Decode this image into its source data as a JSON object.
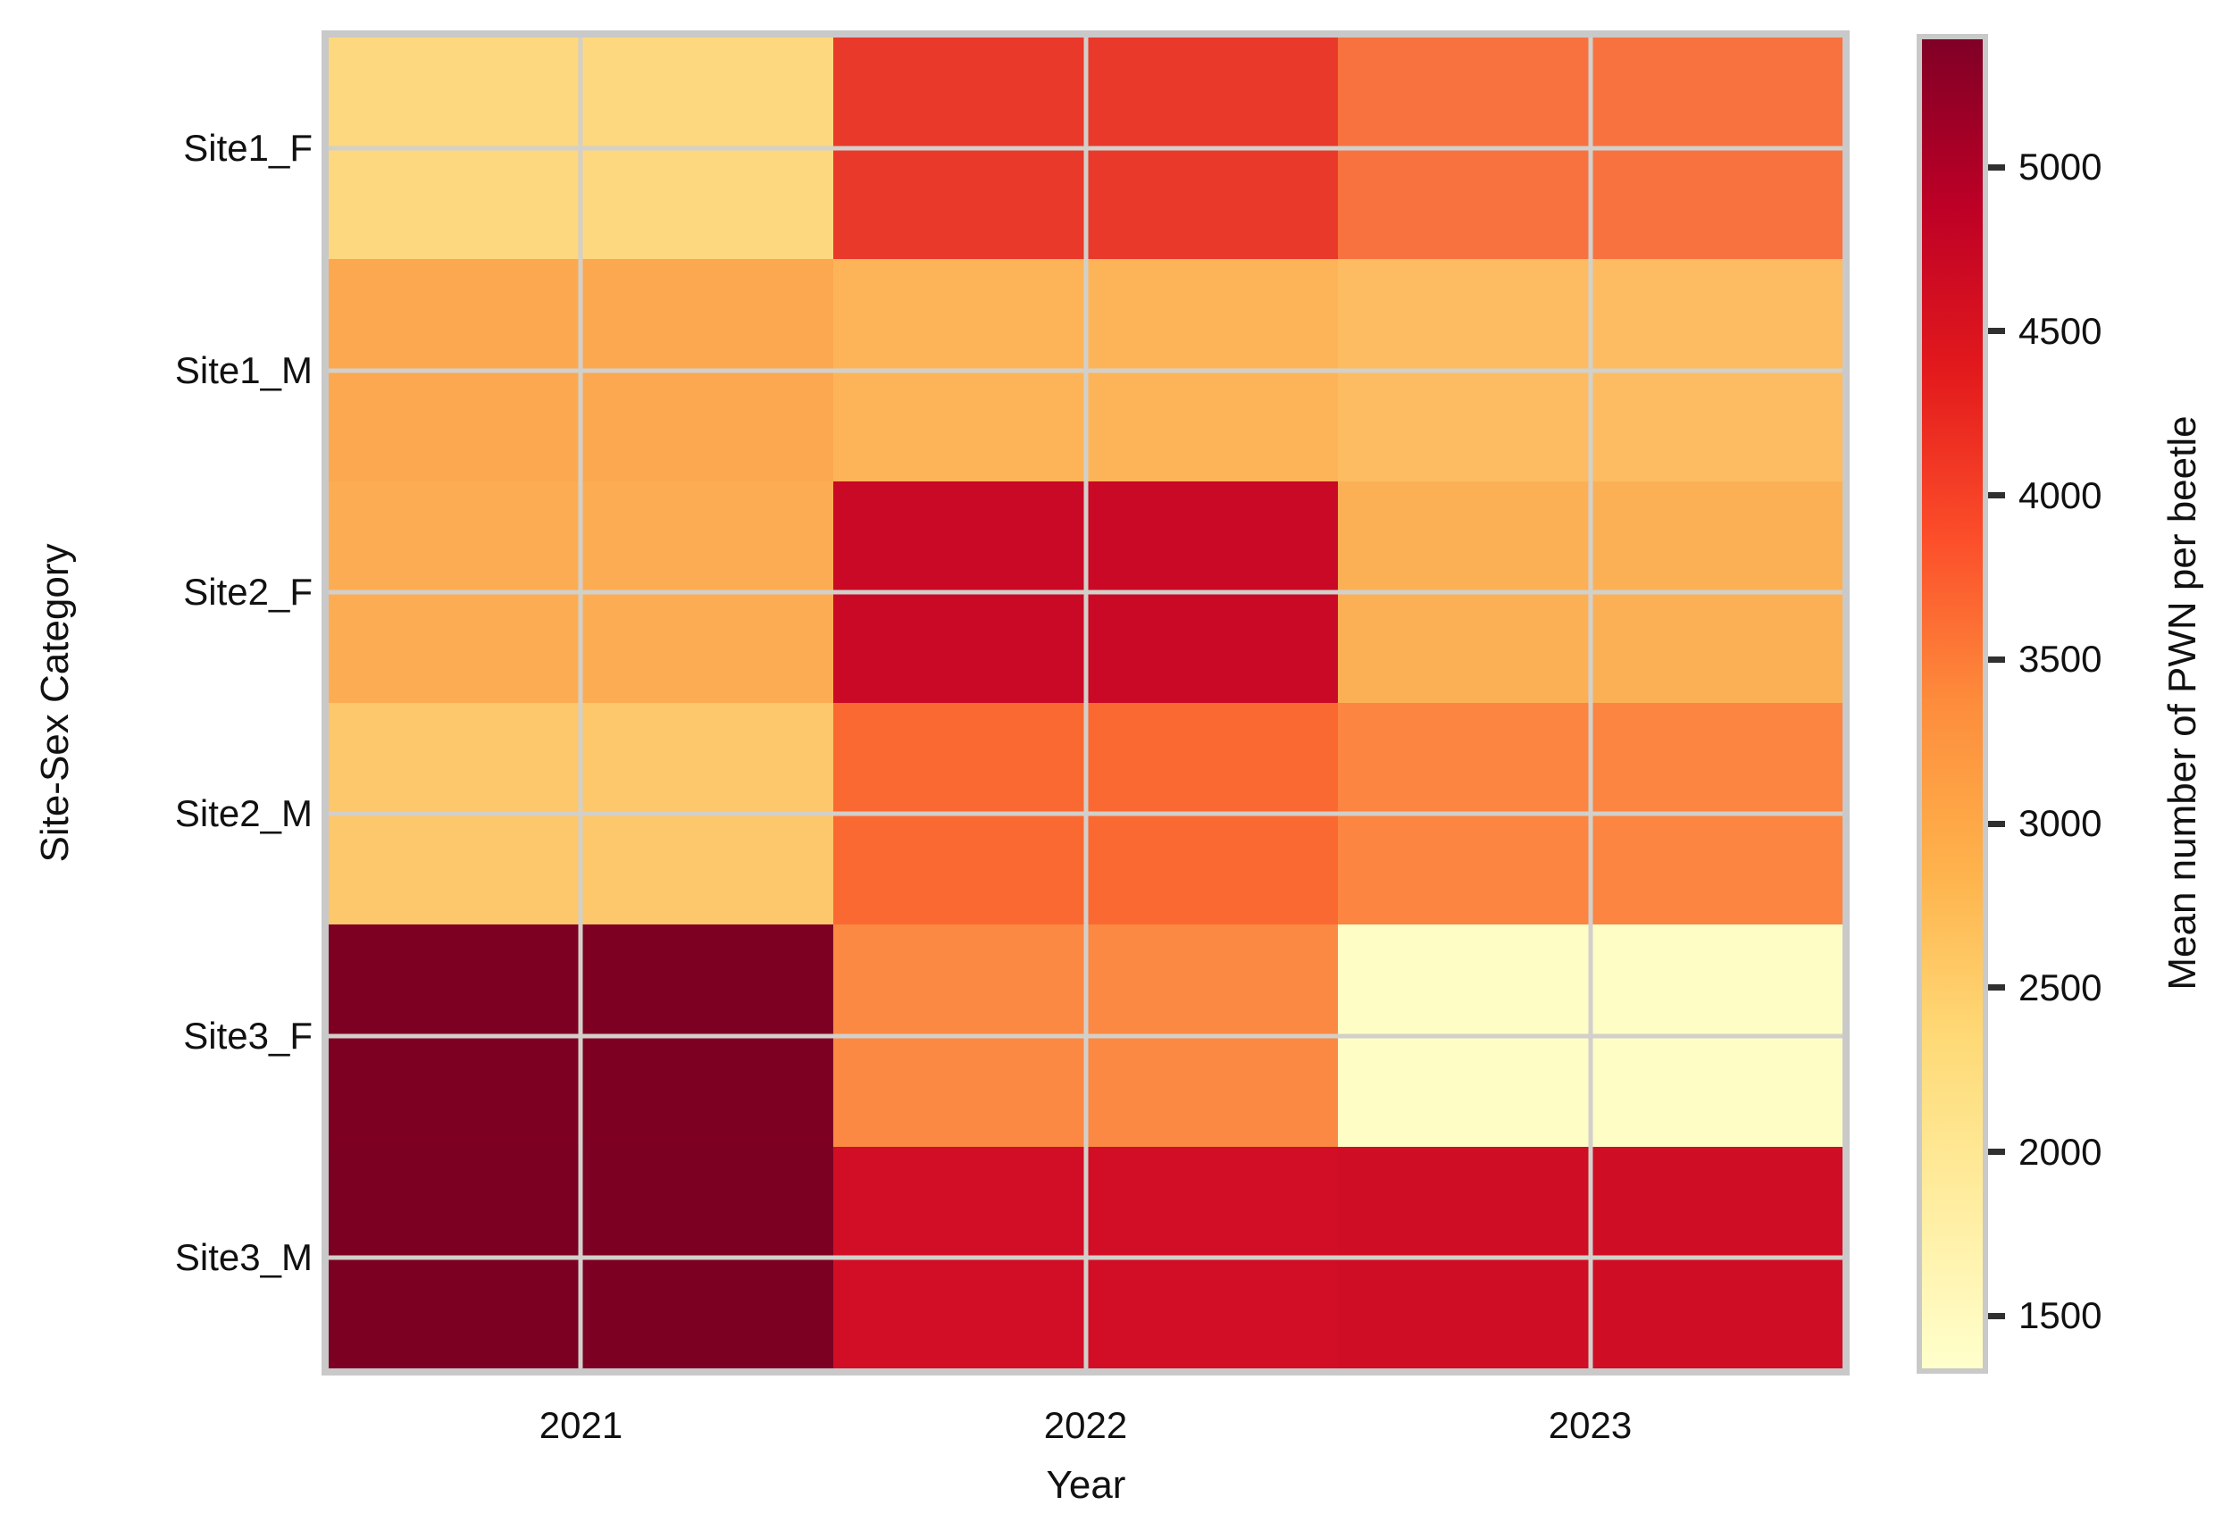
{
  "style": {
    "background": "#ffffff",
    "plot_border_color": "#c9c9c9",
    "gridline_color": "#d2d0ca",
    "text_color": "#111111",
    "tick_mark_color": "#303030"
  },
  "chart_data": {
    "type": "heatmap",
    "title": "",
    "xlabel": "Year",
    "ylabel": "Site-Sex Category",
    "x": [
      "2021",
      "2022",
      "2023"
    ],
    "y": [
      "Site1_F",
      "Site1_M",
      "Site2_F",
      "Site2_M",
      "Site3_F",
      "Site3_M"
    ],
    "values": [
      [
        2360,
        4280,
        3580
      ],
      [
        3000,
        2840,
        2750
      ],
      [
        2930,
        4710,
        2880
      ],
      [
        2620,
        3650,
        3430
      ],
      [
        5390,
        3400,
        1350
      ],
      [
        5380,
        4620,
        4640
      ]
    ],
    "cell_colors": [
      [
        "#FDD87E",
        "#E9392B",
        "#F87240"
      ],
      [
        "#FCA851",
        "#FDB458",
        "#FDBC61"
      ],
      [
        "#FCAD53",
        "#CA0926",
        "#FCB056"
      ],
      [
        "#FDC76B",
        "#FB6933",
        "#FB8541"
      ],
      [
        "#7D0023",
        "#FB8943",
        "#FEFDC6"
      ],
      [
        "#7B0022",
        "#D10E26",
        "#CF0D25"
      ]
    ],
    "colormap": "YlOrRd",
    "grid": "center-lines on (seaborn white style, lines at tick positions)",
    "legend_position": "right colorbar",
    "colorbar": {
      "label": "Mean number of PWN per beetle",
      "vmin": 1340,
      "vmax": 5390,
      "ticks": [
        1500,
        2000,
        2500,
        3000,
        3500,
        4000,
        4500,
        5000
      ],
      "gradient_stops": [
        {
          "pos": 0.0,
          "color": "#FFFFCC"
        },
        {
          "pos": 0.125,
          "color": "#FFEDA0"
        },
        {
          "pos": 0.25,
          "color": "#FED976"
        },
        {
          "pos": 0.375,
          "color": "#FEB24C"
        },
        {
          "pos": 0.5,
          "color": "#FD8D3C"
        },
        {
          "pos": 0.625,
          "color": "#FC4E2A"
        },
        {
          "pos": 0.75,
          "color": "#E31A1C"
        },
        {
          "pos": 0.875,
          "color": "#BD0026"
        },
        {
          "pos": 1.0,
          "color": "#800026"
        }
      ]
    }
  }
}
